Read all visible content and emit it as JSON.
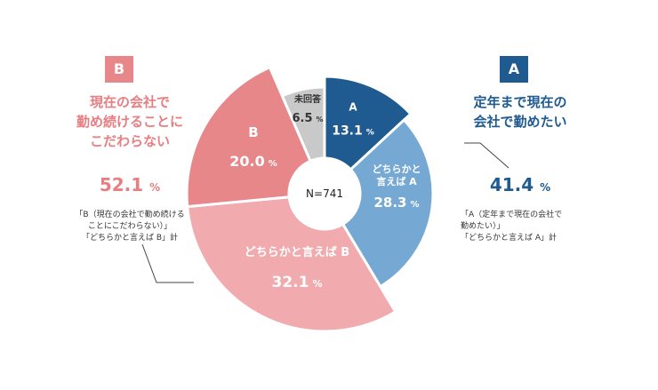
{
  "colors": {
    "a_dark": "#1f5a90",
    "a_light": "#75a9d3",
    "b_dark": "#e8878a",
    "b_light": "#f1aaad",
    "none": "#c9c9c9",
    "b_text": "#e87e82",
    "a_text": "#1f5a90",
    "connector": "#444444"
  },
  "chart_data": {
    "type": "pie",
    "style": "donut",
    "center_label": "N=741",
    "slices": [
      {
        "id": "a",
        "name": "A",
        "value": 13.1,
        "value_label": "13.1",
        "unit": "%",
        "color": "#1f5a90",
        "text_color": "#ffffff"
      },
      {
        "id": "a-somewhat",
        "name": "どちらかと\n言えば A",
        "value": 28.3,
        "value_label": "28.3",
        "unit": "%",
        "color": "#75a9d3",
        "text_color": "#ffffff"
      },
      {
        "id": "b-somewhat",
        "name": "どちらかと言えば B",
        "value": 32.1,
        "value_label": "32.1",
        "unit": "%",
        "color": "#f1aaad",
        "text_color": "#ffffff"
      },
      {
        "id": "b",
        "name": "B",
        "value": 20.0,
        "value_label": "20.0",
        "unit": "%",
        "color": "#e8878a",
        "text_color": "#ffffff"
      },
      {
        "id": "no-answer",
        "name": "未回答",
        "value": 6.5,
        "value_label": "6.5",
        "unit": "%",
        "color": "#c9c9c9",
        "text_color": "#333333"
      }
    ]
  },
  "side_b": {
    "box_label": "B",
    "heading_lines": [
      "現在の会社で",
      "勤め続けることに",
      "こだわらない"
    ],
    "total_value": "52.1",
    "unit": "%",
    "note_lines": [
      "「B（現在の会社で勤め続ける",
      "ことにこだわらない）」",
      "「どちらかと言えば B」計"
    ]
  },
  "side_a": {
    "box_label": "A",
    "heading_lines": [
      "定年まで現在の",
      "会社で勤めたい"
    ],
    "total_value": "41.4",
    "unit": "%",
    "note_lines": [
      "「A（定年まで現在の会社で",
      "勤めたい）」",
      "「どちらかと言えば A」計"
    ]
  }
}
